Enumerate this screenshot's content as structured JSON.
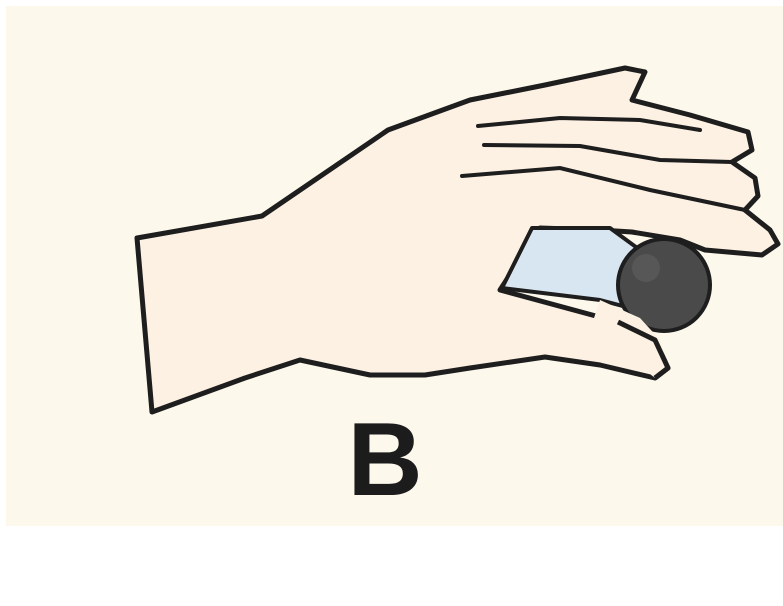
{
  "figure": {
    "caption": "B",
    "colors": {
      "background": "#fdf8ec",
      "skin": "#fcf1e3",
      "outline": "#1e1e1e",
      "gap": "#d8e6f1",
      "ball": "#4a4a4a"
    },
    "icons": [
      "hand-icon",
      "ball-icon"
    ]
  }
}
